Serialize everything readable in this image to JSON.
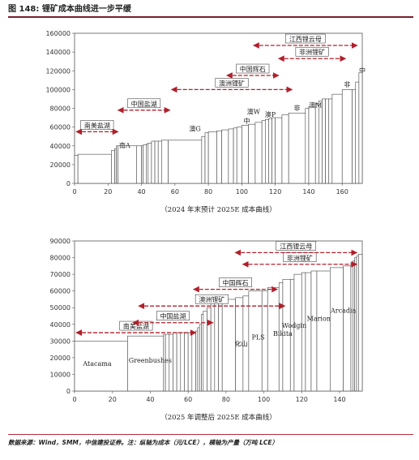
{
  "figure_title": "图 148: 锂矿成本曲线进一步平缓",
  "source_note": "数据来源：Wind，SMM，中信建投证券。注：纵轴为成本（元/LCE），横轴为产量（万吨 LCE）",
  "colors": {
    "accent": "#b52d3a",
    "arrow": "#b0202c",
    "step_fill": "#ffffff",
    "step_stroke": "#444444"
  },
  "chart_data": [
    {
      "type": "bar",
      "caption": "（2024 年末预计 2025E 成本曲线）",
      "xlim": [
        0,
        172
      ],
      "ylim": [
        0,
        160000
      ],
      "xticks": [
        0,
        20,
        40,
        60,
        80,
        100,
        120,
        140,
        160
      ],
      "yticks": [
        0,
        20000,
        40000,
        60000,
        80000,
        100000,
        120000,
        140000,
        160000
      ],
      "steps": [
        {
          "x0": 0,
          "x1": 2,
          "y": 30000
        },
        {
          "x0": 2,
          "x1": 22,
          "y": 31000
        },
        {
          "x0": 22,
          "x1": 24,
          "y": 35000
        },
        {
          "x0": 24,
          "x1": 25,
          "y": 37000
        },
        {
          "x0": 25,
          "x1": 26,
          "y": 40000
        },
        {
          "x0": 26,
          "x1": 37,
          "y": 40000
        },
        {
          "x0": 37,
          "x1": 40,
          "y": 40000
        },
        {
          "x0": 40,
          "x1": 41,
          "y": 40000
        },
        {
          "x0": 41,
          "x1": 43,
          "y": 41000
        },
        {
          "x0": 43,
          "x1": 44,
          "y": 42000
        },
        {
          "x0": 44,
          "x1": 46,
          "y": 43000
        },
        {
          "x0": 46,
          "x1": 48,
          "y": 45000
        },
        {
          "x0": 48,
          "x1": 50,
          "y": 45000
        },
        {
          "x0": 50,
          "x1": 52,
          "y": 45000
        },
        {
          "x0": 52,
          "x1": 56,
          "y": 46000
        },
        {
          "x0": 56,
          "x1": 76,
          "y": 46000
        },
        {
          "x0": 76,
          "x1": 78,
          "y": 50000
        },
        {
          "x0": 78,
          "x1": 80,
          "y": 54000
        },
        {
          "x0": 80,
          "x1": 85,
          "y": 55000
        },
        {
          "x0": 85,
          "x1": 88,
          "y": 56000
        },
        {
          "x0": 88,
          "x1": 92,
          "y": 57000
        },
        {
          "x0": 92,
          "x1": 95,
          "y": 58000
        },
        {
          "x0": 95,
          "x1": 97,
          "y": 59000
        },
        {
          "x0": 97,
          "x1": 100,
          "y": 60000
        },
        {
          "x0": 100,
          "x1": 104,
          "y": 62000
        },
        {
          "x0": 104,
          "x1": 108,
          "y": 63000
        },
        {
          "x0": 108,
          "x1": 112,
          "y": 65000
        },
        {
          "x0": 112,
          "x1": 114,
          "y": 67000
        },
        {
          "x0": 114,
          "x1": 116,
          "y": 68000
        },
        {
          "x0": 116,
          "x1": 118,
          "y": 69000
        },
        {
          "x0": 118,
          "x1": 120,
          "y": 70000
        },
        {
          "x0": 120,
          "x1": 124,
          "y": 70000
        },
        {
          "x0": 124,
          "x1": 128,
          "y": 73000
        },
        {
          "x0": 128,
          "x1": 138,
          "y": 75000
        },
        {
          "x0": 138,
          "x1": 140,
          "y": 80000
        },
        {
          "x0": 140,
          "x1": 144,
          "y": 82000
        },
        {
          "x0": 144,
          "x1": 146,
          "y": 85000
        },
        {
          "x0": 146,
          "x1": 148,
          "y": 88000
        },
        {
          "x0": 148,
          "x1": 150,
          "y": 90000
        },
        {
          "x0": 150,
          "x1": 152,
          "y": 90000
        },
        {
          "x0": 152,
          "x1": 154,
          "y": 90000
        },
        {
          "x0": 154,
          "x1": 160,
          "y": 95000
        },
        {
          "x0": 160,
          "x1": 166,
          "y": 100000
        },
        {
          "x0": 166,
          "x1": 168,
          "y": 100000
        },
        {
          "x0": 168,
          "x1": 170,
          "y": 108000
        },
        {
          "x0": 170,
          "x1": 172,
          "y": 118000
        }
      ],
      "ranges": [
        {
          "label": "南美盐湖",
          "x0": 0,
          "x1": 27,
          "y": 55000
        },
        {
          "label": "中国盐湖",
          "x0": 25,
          "x1": 58,
          "y": 78000
        },
        {
          "label": "澳洲锂矿",
          "x0": 57,
          "x1": 131,
          "y": 100000
        },
        {
          "label": "中国辉石",
          "x0": 90,
          "x1": 123,
          "y": 115000
        },
        {
          "label": "非洲锂矿",
          "x0": 121,
          "x1": 163,
          "y": 133000
        },
        {
          "label": "江西锂云母",
          "x0": 106,
          "x1": 170,
          "y": 147000
        }
      ],
      "point_labels": [
        {
          "text": "南A",
          "x": 30,
          "y": 38000
        },
        {
          "text": "澳G",
          "x": 72,
          "y": 56000
        },
        {
          "text": "澳W",
          "x": 107,
          "y": 74000
        },
        {
          "text": "中",
          "x": 103,
          "y": 64000
        },
        {
          "text": "澳P",
          "x": 117,
          "y": 71000
        },
        {
          "text": "非",
          "x": 133,
          "y": 78000
        },
        {
          "text": "澳M",
          "x": 144,
          "y": 81000
        },
        {
          "text": "非",
          "x": 163,
          "y": 103000
        },
        {
          "text": "中",
          "x": 172,
          "y": 118000
        }
      ]
    },
    {
      "type": "bar",
      "caption": "（2025 年调整后 2025E 成本曲线）",
      "xlim": [
        0,
        152
      ],
      "ylim": [
        0,
        90000
      ],
      "xticks": [
        0,
        20,
        40,
        60,
        80,
        100,
        120,
        140
      ],
      "yticks": [
        0,
        10000,
        20000,
        30000,
        40000,
        50000,
        60000,
        70000,
        80000,
        90000
      ],
      "steps": [
        {
          "x0": 0,
          "x1": 28,
          "y": 30000
        },
        {
          "x0": 28,
          "x1": 47,
          "y": 33000
        },
        {
          "x0": 47,
          "x1": 48,
          "y": 34000
        },
        {
          "x0": 48,
          "x1": 50,
          "y": 34000
        },
        {
          "x0": 50,
          "x1": 52,
          "y": 34000
        },
        {
          "x0": 52,
          "x1": 54,
          "y": 35000
        },
        {
          "x0": 54,
          "x1": 56,
          "y": 35000
        },
        {
          "x0": 56,
          "x1": 58,
          "y": 35000
        },
        {
          "x0": 58,
          "x1": 60,
          "y": 35000
        },
        {
          "x0": 60,
          "x1": 62,
          "y": 35000
        },
        {
          "x0": 62,
          "x1": 64,
          "y": 35000
        },
        {
          "x0": 64,
          "x1": 65,
          "y": 36000
        },
        {
          "x0": 65,
          "x1": 66,
          "y": 38000
        },
        {
          "x0": 66,
          "x1": 67,
          "y": 40000
        },
        {
          "x0": 67,
          "x1": 68,
          "y": 46000
        },
        {
          "x0": 68,
          "x1": 70,
          "y": 48000
        },
        {
          "x0": 70,
          "x1": 72,
          "y": 50000
        },
        {
          "x0": 72,
          "x1": 74,
          "y": 53000
        },
        {
          "x0": 74,
          "x1": 76,
          "y": 54000
        },
        {
          "x0": 76,
          "x1": 78,
          "y": 55000
        },
        {
          "x0": 78,
          "x1": 85,
          "y": 55000
        },
        {
          "x0": 85,
          "x1": 89,
          "y": 56000
        },
        {
          "x0": 89,
          "x1": 92,
          "y": 57000
        },
        {
          "x0": 92,
          "x1": 99,
          "y": 60000
        },
        {
          "x0": 99,
          "x1": 102,
          "y": 60000
        },
        {
          "x0": 102,
          "x1": 108,
          "y": 62000
        },
        {
          "x0": 108,
          "x1": 110,
          "y": 65000
        },
        {
          "x0": 110,
          "x1": 114,
          "y": 67000
        },
        {
          "x0": 114,
          "x1": 116,
          "y": 67000
        },
        {
          "x0": 116,
          "x1": 120,
          "y": 70000
        },
        {
          "x0": 120,
          "x1": 122,
          "y": 71000
        },
        {
          "x0": 122,
          "x1": 125,
          "y": 71000
        },
        {
          "x0": 125,
          "x1": 128,
          "y": 72000
        },
        {
          "x0": 128,
          "x1": 135,
          "y": 72000
        },
        {
          "x0": 135,
          "x1": 142,
          "y": 74000
        },
        {
          "x0": 142,
          "x1": 146,
          "y": 75000
        },
        {
          "x0": 146,
          "x1": 147,
          "y": 77000
        },
        {
          "x0": 147,
          "x1": 148,
          "y": 78000
        },
        {
          "x0": 148,
          "x1": 149,
          "y": 80000
        },
        {
          "x0": 149,
          "x1": 150,
          "y": 81000
        },
        {
          "x0": 150,
          "x1": 152,
          "y": 82000
        }
      ],
      "ranges": [
        {
          "label": "南美盐湖",
          "x0": 0,
          "x1": 65,
          "y": 35000
        },
        {
          "label": "中国盐湖",
          "x0": 30,
          "x1": 74,
          "y": 41000
        },
        {
          "label": "澳洲锂矿",
          "x0": 33,
          "x1": 112,
          "y": 51000
        },
        {
          "label": "中国辉石",
          "x0": 62,
          "x1": 108,
          "y": 61000
        },
        {
          "label": "非洲锂矿",
          "x0": 88,
          "x1": 150,
          "y": 76000
        },
        {
          "label": "江西锂云母",
          "x0": 84,
          "x1": 150,
          "y": 83000
        }
      ],
      "point_labels": [
        {
          "text": "Atacama",
          "x": 12,
          "y": 15000
        },
        {
          "text": "Greenbushes",
          "x": 40,
          "y": 17000
        },
        {
          "text": "化山",
          "x": 88,
          "y": 27000
        },
        {
          "text": "PLS",
          "x": 97,
          "y": 31000
        },
        {
          "text": "Bikita",
          "x": 110,
          "y": 33000
        },
        {
          "text": "Wodgin",
          "x": 116,
          "y": 38000
        },
        {
          "text": "Marion",
          "x": 129,
          "y": 42000
        },
        {
          "text": "Arcadia",
          "x": 142,
          "y": 47000
        }
      ]
    }
  ]
}
